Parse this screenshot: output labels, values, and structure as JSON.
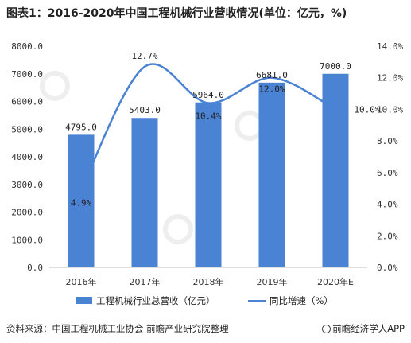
{
  "title": "图表1：2016-2020年中国工程机械行业营收情况(单位：亿元，%)",
  "source": "资料来源：中国工程机械工业协会 前瞻产业研究院整理",
  "brand": "前瞻经济学人APP",
  "chart_data": {
    "type": "bar+line",
    "categories": [
      "2016年",
      "2017年",
      "2018年",
      "2019年",
      "2020年E"
    ],
    "series": [
      {
        "name": "工程机械行业总营收（亿元）",
        "type": "bar",
        "axis": "left",
        "values": [
          4795.0,
          5403.0,
          5964.0,
          6681.0,
          7000.0
        ],
        "labels": [
          "4795.0",
          "5403.0",
          "5964.0",
          "6681.0",
          "7000.0"
        ],
        "color": "#4a82d4"
      },
      {
        "name": "同比增速（%）",
        "type": "line",
        "axis": "right",
        "values": [
          4.9,
          12.7,
          10.4,
          12.0,
          10.0
        ],
        "labels": [
          "4.9%",
          "12.7%",
          "10.4%",
          "12.0%",
          "10.0%"
        ],
        "color": "#4a82d4"
      }
    ],
    "y_left": {
      "min": 0,
      "max": 8000,
      "step": 1000,
      "ticks": [
        "0.0",
        "1000.0",
        "2000.0",
        "3000.0",
        "4000.0",
        "5000.0",
        "6000.0",
        "7000.0",
        "8000.0"
      ]
    },
    "y_right": {
      "min": 0,
      "max": 14,
      "step": 2,
      "ticks": [
        "0.0%",
        "2.0%",
        "4.0%",
        "6.0%",
        "8.0%",
        "10.0%",
        "12.0%",
        "14.0%"
      ]
    },
    "legend_position": "bottom",
    "grid": false
  }
}
